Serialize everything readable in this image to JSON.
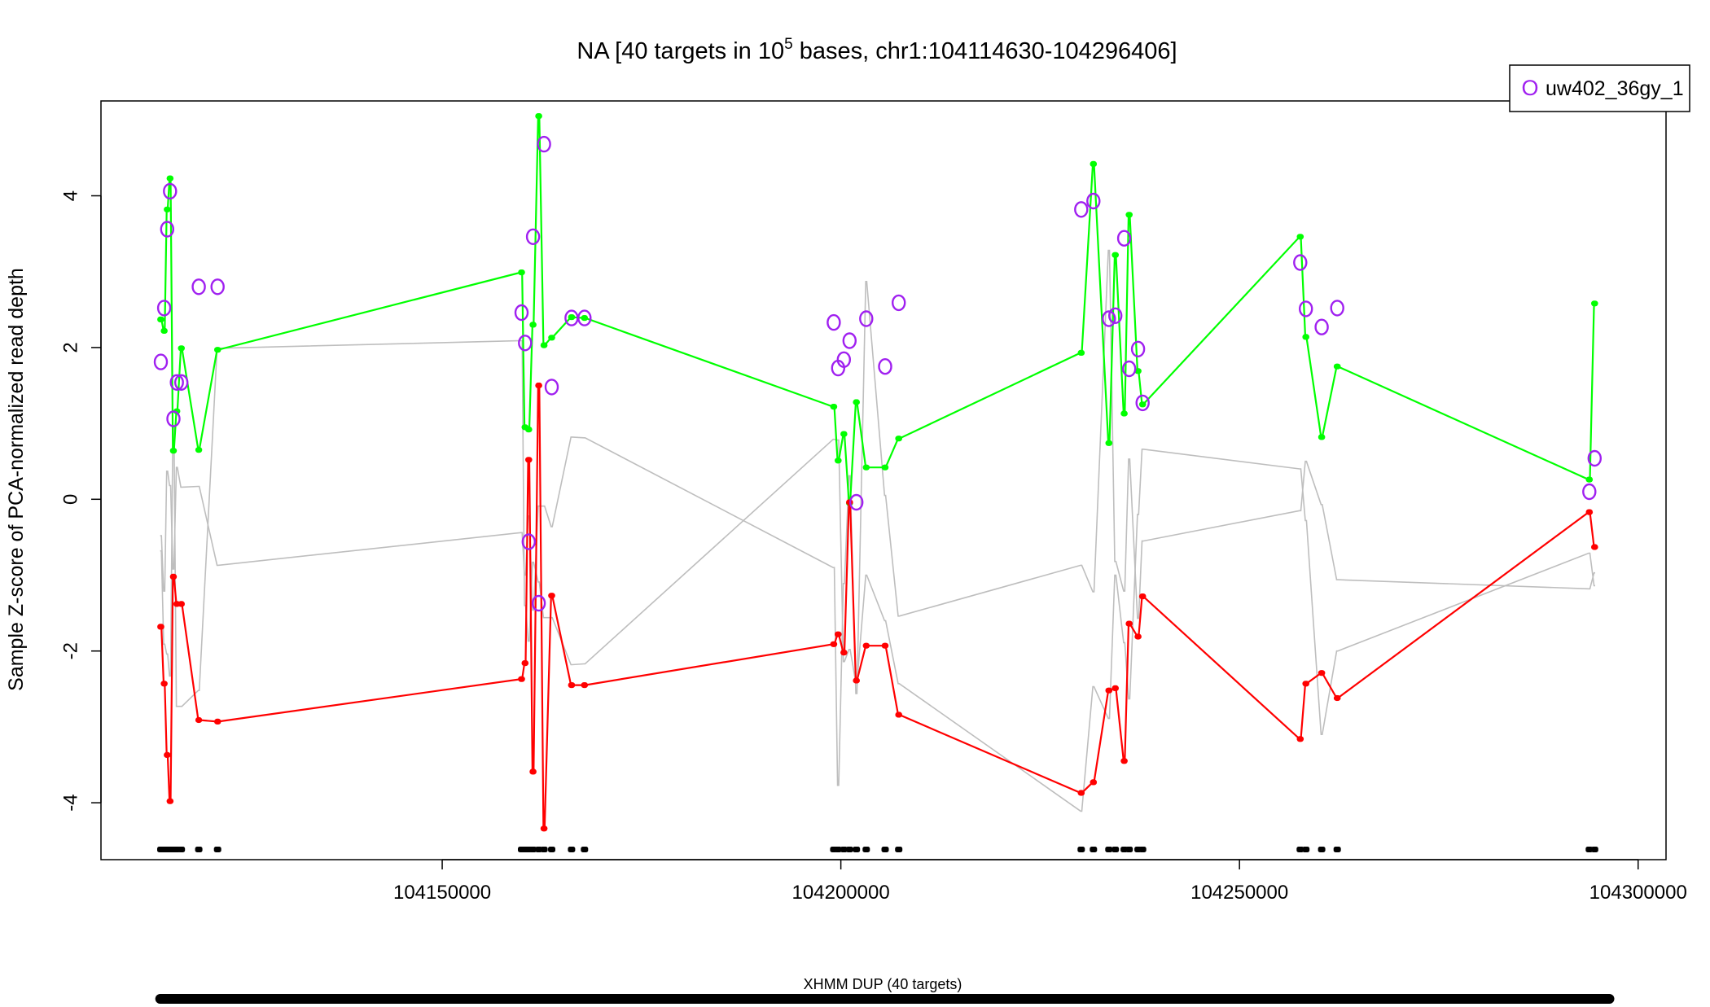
{
  "chart_data": {
    "type": "line",
    "title_main": "NA [40 targets in 10",
    "title_sup": "5",
    "title_rest": " bases, chr1:104114630-104296406]",
    "ylabel": "Sample Z-score of PCA-normalized read depth",
    "xlim": [
      104107200,
      104303500
    ],
    "ylim": [
      -4.75,
      5.25
    ],
    "x_ticks": [
      104150000,
      104200000,
      104250000,
      104300000
    ],
    "x_tick_labels": [
      "104150000",
      "104200000",
      "104250000",
      "104300000"
    ],
    "y_ticks": [
      -4,
      -2,
      0,
      2,
      4
    ],
    "y_tick_labels": [
      "-4",
      "-2",
      "0",
      "2",
      "4"
    ],
    "legend": {
      "label": "uw402_36gy_1",
      "marker": "O",
      "placement": "top-right"
    },
    "cnv_label": "XHMM DUP (40 targets)",
    "cnv_range": [
      104114630,
      104296406
    ],
    "colors": {
      "upper": "#00ff00",
      "lower": "#ff0000",
      "other": "#bebebe",
      "sample": "#a020f0",
      "marker": "#000000"
    },
    "targets": [
      [
        104114630,
        104114780
      ],
      [
        104115060,
        104115200
      ],
      [
        104115440,
        104115560
      ],
      [
        104115800,
        104115930
      ],
      [
        104116220,
        104116350
      ],
      [
        104116660,
        104116780
      ],
      [
        104117220,
        104117350
      ],
      [
        104119400,
        104119530
      ],
      [
        104121760,
        104121900
      ],
      [
        104159880,
        104160020
      ],
      [
        104160320,
        104160460
      ],
      [
        104160780,
        104160920
      ],
      [
        104161320,
        104161460
      ],
      [
        104162040,
        104162180
      ],
      [
        104162700,
        104162840
      ],
      [
        104163660,
        104163800
      ],
      [
        104166150,
        104166300
      ],
      [
        104167780,
        104167920
      ],
      [
        104199040,
        104199180
      ],
      [
        104199590,
        104199730
      ],
      [
        104200310,
        104200450
      ],
      [
        104201020,
        104201160
      ],
      [
        104201880,
        104202020
      ],
      [
        104203120,
        104203250
      ],
      [
        104205480,
        104205620
      ],
      [
        104207190,
        104207330
      ],
      [
        104230080,
        104230220
      ],
      [
        104231610,
        104231750
      ],
      [
        104233550,
        104233690
      ],
      [
        104234360,
        104234500
      ],
      [
        104235470,
        104235610
      ],
      [
        104236090,
        104236230
      ],
      [
        104237210,
        104237350
      ],
      [
        104237780,
        104237920
      ],
      [
        104257550,
        104257690
      ],
      [
        104258260,
        104258400
      ],
      [
        104260240,
        104260380
      ],
      [
        104262190,
        104262330
      ],
      [
        104293810,
        104293950
      ],
      [
        104294470,
        104294610
      ]
    ],
    "series": [
      {
        "role": "upper",
        "values": [
          2.37,
          2.22,
          3.82,
          4.23,
          0.64,
          1.16,
          1.99,
          0.65,
          1.97,
          2.99,
          0.95,
          0.92,
          2.3,
          5.05,
          2.03,
          2.13,
          2.4,
          2.39,
          1.22,
          0.51,
          0.86,
          -0.05,
          1.28,
          0.42,
          0.42,
          0.8,
          1.93,
          4.42,
          0.74,
          3.22,
          1.13,
          3.75,
          1.69,
          1.25,
          3.46,
          2.14,
          0.82,
          1.75,
          0.26,
          2.58
        ]
      },
      {
        "role": "lower",
        "values": [
          -1.68,
          -2.43,
          -3.37,
          -3.98,
          -1.02,
          -1.38,
          -1.38,
          -2.91,
          -2.93,
          -2.37,
          -2.16,
          0.52,
          -3.59,
          1.5,
          -4.34,
          -1.27,
          -2.45,
          -2.45,
          -1.91,
          -1.78,
          -2.02,
          -0.04,
          -2.39,
          -1.93,
          -1.93,
          -2.84,
          -3.87,
          -3.73,
          -2.52,
          -2.49,
          -3.45,
          -1.64,
          -1.81,
          -1.28,
          -3.16,
          -2.43,
          -2.29,
          -2.62,
          -0.17,
          -0.63
        ]
      },
      {
        "role": "other",
        "values": [
          -0.48,
          -1.21,
          0.37,
          0.18,
          -0.92,
          0.42,
          0.16,
          0.17,
          -0.87,
          -0.44,
          -1.0,
          -0.22,
          -1.46,
          -0.09,
          -0.09,
          -0.36,
          0.82,
          0.81,
          -0.9,
          -3.77,
          -1.11,
          0.31,
          -2.56,
          2.87,
          0.05,
          -1.54,
          -0.87,
          -1.22,
          3.28,
          -0.82,
          -1.21,
          0.53,
          -1.57,
          -0.55,
          -0.15,
          0.5,
          -0.07,
          -1.06,
          -1.18,
          -0.97
        ]
      },
      {
        "role": "other",
        "values": [
          -0.68,
          -1.91,
          -2.04,
          -2.33,
          0.96,
          -2.73,
          -2.73,
          -2.52,
          1.99,
          2.09,
          -1.4,
          -1.87,
          -0.83,
          -1.09,
          -1.56,
          -1.56,
          -2.18,
          -2.17,
          0.79,
          0.78,
          -2.14,
          -1.98,
          -2.42,
          -1.0,
          -1.6,
          -2.43,
          -4.11,
          -2.47,
          -2.89,
          -1.0,
          -1.89,
          -2.63,
          -0.2,
          0.66,
          0.4,
          -0.28,
          -3.1,
          -2.0,
          -0.71,
          -1.14
        ]
      },
      {
        "role": "sample",
        "values": [
          1.81,
          2.52,
          3.56,
          4.06,
          1.06,
          1.54,
          1.54,
          2.8,
          2.8,
          2.46,
          2.06,
          -0.56,
          3.46,
          -1.37,
          4.68,
          1.48,
          2.39,
          2.39,
          2.33,
          1.73,
          1.84,
          2.09,
          -0.04,
          2.38,
          1.75,
          2.59,
          3.82,
          3.93,
          2.38,
          2.42,
          3.44,
          1.72,
          1.98,
          1.27,
          3.12,
          2.51,
          2.27,
          2.52,
          0.1,
          0.54
        ]
      }
    ]
  }
}
